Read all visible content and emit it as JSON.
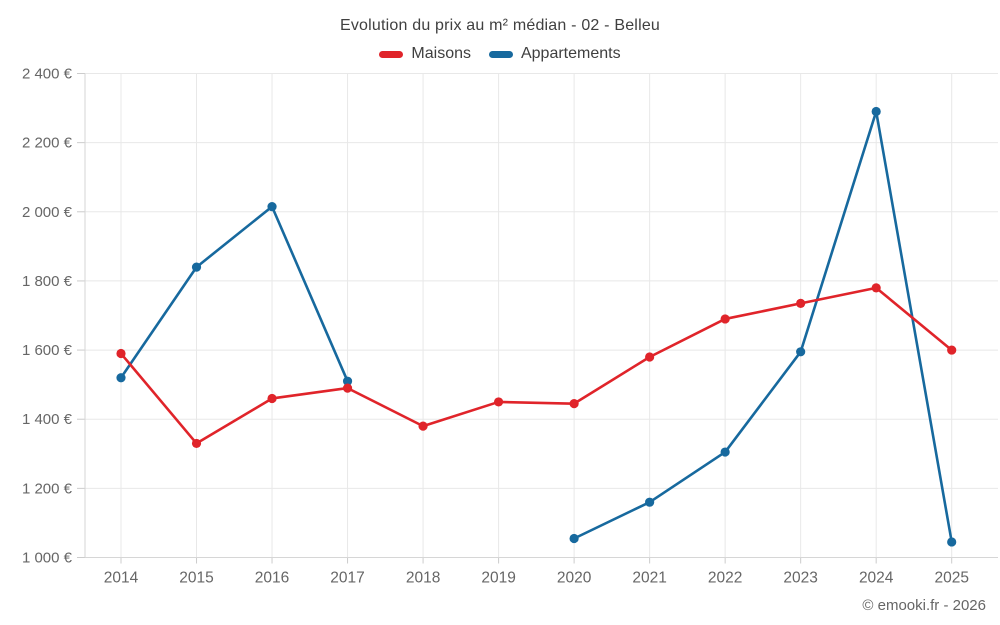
{
  "title": "Evolution du prix au m² médian - 02 - Belleu",
  "footer": "© emooki.fr - 2026",
  "colors": {
    "maisons": "#e0242a",
    "appartements": "#17699e",
    "grid": "#e8e8e8",
    "axis": "#d6d6d6",
    "tick": "#cccccc",
    "axis_text": "#666666",
    "title_text": "#404040"
  },
  "legend": {
    "items": [
      {
        "label": "Maisons",
        "color": "#e0242a"
      },
      {
        "label": "Appartements",
        "color": "#17699e"
      }
    ]
  },
  "chart_data": {
    "type": "line",
    "title": "Evolution du prix au m² médian - 02 - Belleu",
    "xlabel": "",
    "ylabel": "",
    "categories": [
      "2014",
      "2015",
      "2016",
      "2017",
      "2018",
      "2019",
      "2020",
      "2021",
      "2022",
      "2023",
      "2024",
      "2025"
    ],
    "series": [
      {
        "name": "Maisons",
        "color": "#e0242a",
        "values": [
          1590,
          1330,
          1460,
          1490,
          1380,
          1450,
          1445,
          1580,
          1690,
          1735,
          1780,
          1600
        ]
      },
      {
        "name": "Appartements",
        "color": "#17699e",
        "values": [
          1520,
          1840,
          2015,
          1510,
          null,
          null,
          1055,
          1160,
          1305,
          1595,
          2290,
          1045
        ]
      }
    ],
    "ylim": [
      1000,
      2400
    ],
    "yticks": [
      {
        "value": 1000,
        "label": "1 000 €"
      },
      {
        "value": 1200,
        "label": "1 200 €"
      },
      {
        "value": 1400,
        "label": "1 400 €"
      },
      {
        "value": 1600,
        "label": "1 600 €"
      },
      {
        "value": 1800,
        "label": "1 800 €"
      },
      {
        "value": 2000,
        "label": "2 000 €"
      },
      {
        "value": 2200,
        "label": "2 200 €"
      },
      {
        "value": 2400,
        "label": "2 400 €"
      }
    ],
    "grid": true,
    "legend_position": "top"
  }
}
